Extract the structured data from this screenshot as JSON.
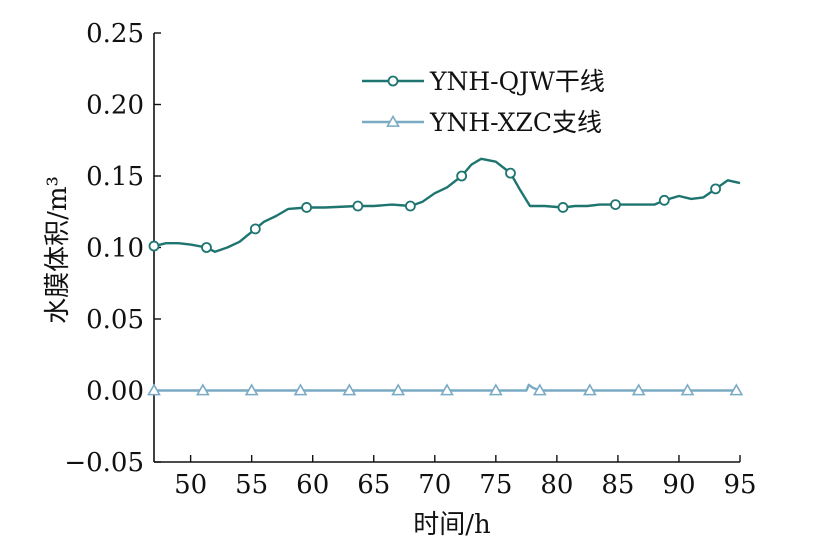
{
  "chart_data": {
    "type": "line",
    "xlabel": "时间/h",
    "ylabel": "水膜体积/m³",
    "xlim": [
      47,
      95
    ],
    "ylim": [
      -0.05,
      0.25
    ],
    "xticks": [
      50,
      55,
      60,
      65,
      70,
      75,
      80,
      85,
      90,
      95
    ],
    "xtick_labels": [
      "50",
      "55",
      "60",
      "65",
      "70",
      "75",
      "80",
      "85",
      "90",
      "95"
    ],
    "yticks": [
      -0.05,
      0.0,
      0.05,
      0.1,
      0.15,
      0.2,
      0.25
    ],
    "ytick_labels": [
      "−0.05",
      "0.00",
      "0.05",
      "0.10",
      "0.15",
      "0.20",
      "0.25"
    ],
    "grid": false,
    "legend_position": "top-right",
    "series": [
      {
        "name": "YNH-QJW干线",
        "color": "#1e7570",
        "marker": "circle",
        "x": [
          47.0,
          48.0,
          49.0,
          50.0,
          51.3,
          52.0,
          53.0,
          54.0,
          55.3,
          56.0,
          57.0,
          58.0,
          59.5,
          61.0,
          63.7,
          65.0,
          66.5,
          68.0,
          69.0,
          70.0,
          71.0,
          72.2,
          73.0,
          73.8,
          75.0,
          76.2,
          77.0,
          77.8,
          79.0,
          80.5,
          81.5,
          82.5,
          83.5,
          84.8,
          86.0,
          87.0,
          88.0,
          88.8,
          90.0,
          91.0,
          92.0,
          93.0,
          94.0,
          95.0
        ],
        "y": [
          0.101,
          0.103,
          0.103,
          0.102,
          0.1,
          0.097,
          0.1,
          0.104,
          0.113,
          0.118,
          0.122,
          0.127,
          0.128,
          0.128,
          0.129,
          0.129,
          0.13,
          0.129,
          0.132,
          0.138,
          0.142,
          0.15,
          0.158,
          0.162,
          0.16,
          0.152,
          0.14,
          0.129,
          0.129,
          0.128,
          0.129,
          0.129,
          0.13,
          0.13,
          0.13,
          0.13,
          0.13,
          0.133,
          0.136,
          0.134,
          0.135,
          0.141,
          0.147,
          0.145
        ],
        "marker_x": [
          47.0,
          51.3,
          55.3,
          59.5,
          63.7,
          68.0,
          72.2,
          76.2,
          80.5,
          84.8,
          88.8,
          93.0
        ]
      },
      {
        "name": "YNH-XZC支线",
        "color": "#7aaac4",
        "marker": "triangle",
        "x": [
          47.0,
          51.0,
          55.0,
          59.0,
          63.0,
          67.0,
          71.0,
          75.0,
          77.5,
          77.7,
          78.0,
          78.6,
          79.0,
          83.0,
          87.0,
          91.0,
          95.0
        ],
        "y": [
          0.0,
          0.0,
          0.0,
          0.0,
          0.0,
          0.0,
          0.0,
          0.0,
          0.0,
          0.004,
          0.002,
          0.0,
          0.0,
          0.0,
          0.0,
          0.0,
          0.0
        ],
        "marker_x": [
          47.0,
          51.0,
          55.0,
          59.0,
          63.0,
          67.0,
          71.0,
          75.0,
          78.6,
          82.7,
          86.7,
          90.7,
          94.7
        ]
      }
    ]
  }
}
